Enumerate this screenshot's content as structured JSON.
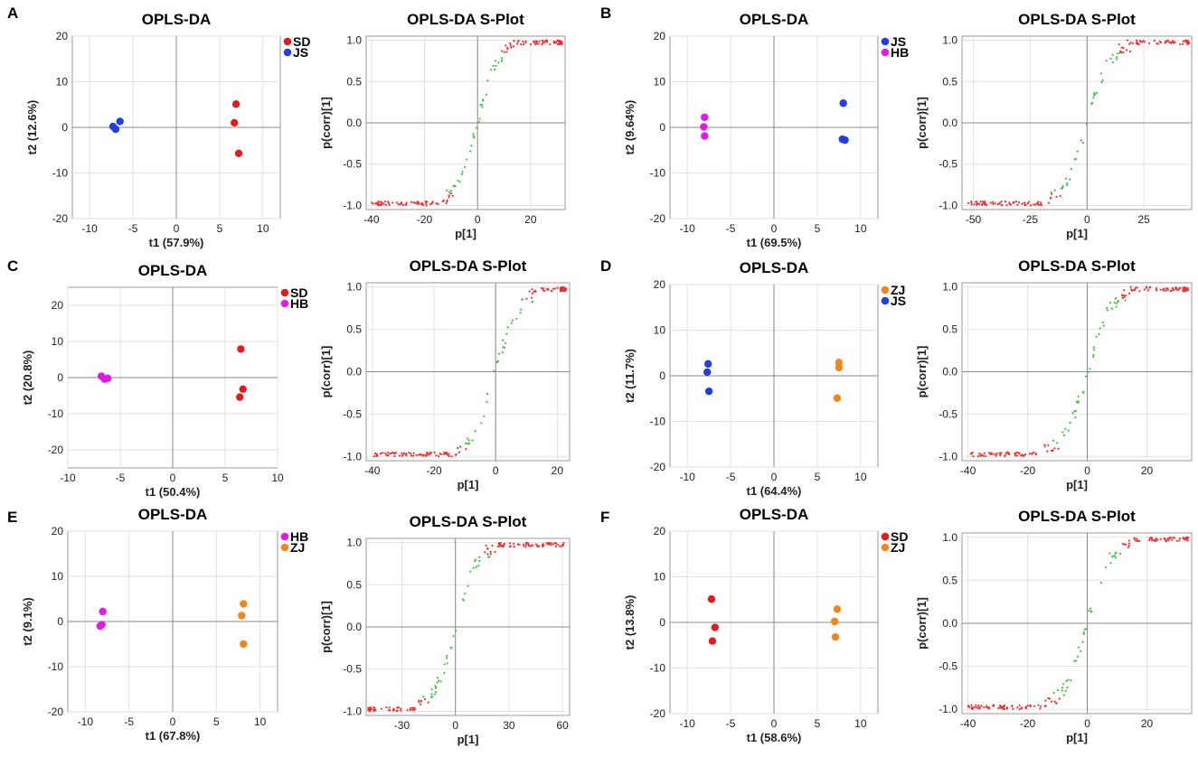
{
  "figure": {
    "title": "OPLS-DA and S-Plot panels A-F"
  },
  "colors": {
    "SD": "#e41a1c",
    "JS": "#1f3fe0",
    "HB": "#e21ae6",
    "ZJ": "#f0871b",
    "sig": "#f03030",
    "nonsig": "#3ac43a",
    "grid": "#e2e2e2",
    "axis": "#9a9a9a",
    "zero": "#8a8a8a"
  },
  "chart_data": [
    {
      "panel": "A",
      "type": "scatter",
      "kind": "opls",
      "title": "OPLS-DA",
      "xlabel": "t1 (57.9%)",
      "ylabel": "t2 (12.6%)",
      "xlim": [
        -12,
        12
      ],
      "ylim": [
        -20,
        20
      ],
      "xticks": [
        -10,
        -5,
        0,
        5,
        10
      ],
      "yticks": [
        -20,
        -10,
        0,
        10,
        20
      ],
      "legend": [
        {
          "label": "SD",
          "color": "#e41a1c"
        },
        {
          "label": "JS",
          "color": "#1f3fe0"
        }
      ],
      "series": [
        {
          "name": "SD",
          "color": "#e41a1c",
          "points": [
            [
              6.9,
              5.1
            ],
            [
              6.7,
              1.0
            ],
            [
              7.2,
              -5.7
            ]
          ]
        },
        {
          "name": "JS",
          "color": "#1f3fe0",
          "points": [
            [
              -6.5,
              1.3
            ],
            [
              -7.0,
              -0.4
            ],
            [
              -7.3,
              0.2
            ]
          ]
        }
      ]
    },
    {
      "panel": "A",
      "type": "scatter",
      "kind": "splot",
      "title": "OPLS-DA S-Plot",
      "xlabel": "p[1]",
      "ylabel": "p(corr)[1]",
      "xlim": [
        -42,
        33
      ],
      "ylim": [
        -1.05,
        1.05
      ],
      "xticks": [
        -40,
        -20,
        0,
        20
      ],
      "xtick_labels": [
        "-40",
        "-20",
        "0",
        "20"
      ],
      "yticks": [
        -1.0,
        -0.5,
        0.0,
        0.5,
        1.0
      ],
      "ytick_labels": [
        "-1.0",
        "-0.5",
        "0.0",
        "0.5",
        "1.0"
      ],
      "seed": 11
    },
    {
      "panel": "B",
      "type": "scatter",
      "kind": "opls",
      "title": "OPLS-DA",
      "xlabel": "t1 (69.5%)",
      "ylabel": "t2 (9.64%)",
      "xlim": [
        -12,
        12
      ],
      "ylim": [
        -20,
        20
      ],
      "xticks": [
        -10,
        -5,
        0,
        5,
        10
      ],
      "yticks": [
        -20,
        -10,
        0,
        10,
        20
      ],
      "legend": [
        {
          "label": "JS",
          "color": "#1f3fe0"
        },
        {
          "label": "HB",
          "color": "#e21ae6"
        }
      ],
      "series": [
        {
          "name": "JS",
          "color": "#1f3fe0",
          "points": [
            [
              8.0,
              5.3
            ],
            [
              7.9,
              -2.6
            ],
            [
              8.2,
              -2.8
            ]
          ]
        },
        {
          "name": "HB",
          "color": "#e21ae6",
          "points": [
            [
              -8.0,
              2.2
            ],
            [
              -8.1,
              0.1
            ],
            [
              -8.0,
              -1.9
            ]
          ]
        }
      ]
    },
    {
      "panel": "B",
      "type": "scatter",
      "kind": "splot",
      "title": "OPLS-DA S-Plot",
      "xlabel": "p[1]",
      "ylabel": "p(corr)[1]",
      "xlim": [
        -55,
        46
      ],
      "ylim": [
        -1.05,
        1.05
      ],
      "xticks": [
        -50,
        -25,
        0,
        25
      ],
      "xtick_labels": [
        "-50",
        "-25",
        "0",
        "25"
      ],
      "yticks": [
        -1.0,
        -0.5,
        0.0,
        0.5,
        1.0
      ],
      "ytick_labels": [
        "-1.0",
        "-0.5",
        "0.0",
        "0.5",
        "1.0"
      ],
      "seed": 23
    },
    {
      "panel": "C",
      "type": "scatter",
      "kind": "opls",
      "title": "OPLS-DA",
      "xlabel": "t1 (50.4%)",
      "ylabel": "t2 (20.8%)",
      "xlim": [
        -10,
        10
      ],
      "ylim": [
        -25,
        25
      ],
      "xticks": [
        -10,
        -5,
        0,
        5,
        10
      ],
      "yticks": [
        -20,
        -10,
        0,
        10,
        20
      ],
      "legend": [
        {
          "label": "SD",
          "color": "#e41a1c"
        },
        {
          "label": "HB",
          "color": "#e21ae6"
        }
      ],
      "series": [
        {
          "name": "SD",
          "color": "#e41a1c",
          "points": [
            [
              6.5,
              7.9
            ],
            [
              6.7,
              -3.2
            ],
            [
              6.4,
              -5.4
            ]
          ]
        },
        {
          "name": "HB",
          "color": "#e21ae6",
          "points": [
            [
              -6.8,
              0.4
            ],
            [
              -6.5,
              -0.4
            ],
            [
              -6.2,
              -0.2
            ]
          ]
        }
      ]
    },
    {
      "panel": "C",
      "type": "scatter",
      "kind": "splot",
      "title": "OPLS-DA S-Plot",
      "xlabel": "p[1]",
      "ylabel": "p(corr)[1]",
      "xlim": [
        -42,
        24
      ],
      "ylim": [
        -1.05,
        1.05
      ],
      "xticks": [
        -40,
        -20,
        0,
        20
      ],
      "xtick_labels": [
        "-40",
        "-20",
        "0",
        "20"
      ],
      "yticks": [
        -1.0,
        -0.5,
        0.0,
        0.5,
        1.0
      ],
      "ytick_labels": [
        "-1.0",
        "-0.5",
        "0.0",
        "0.5",
        "1.0"
      ],
      "seed": 37
    },
    {
      "panel": "D",
      "type": "scatter",
      "kind": "opls",
      "title": "OPLS-DA",
      "xlabel": "t1 (64.4%)",
      "ylabel": "t2 (11.7%)",
      "xlim": [
        -12,
        12
      ],
      "ylim": [
        -20,
        20
      ],
      "xticks": [
        -10,
        -5,
        0,
        5,
        10
      ],
      "yticks": [
        -20,
        -10,
        0,
        10,
        20
      ],
      "legend": [
        {
          "label": "ZJ",
          "color": "#f0871b"
        },
        {
          "label": "JS",
          "color": "#1f3fe0"
        }
      ],
      "series": [
        {
          "name": "ZJ",
          "color": "#f0871b",
          "points": [
            [
              7.5,
              2.9
            ],
            [
              7.5,
              1.8
            ],
            [
              7.3,
              -4.9
            ]
          ]
        },
        {
          "name": "JS",
          "color": "#1f3fe0",
          "points": [
            [
              -7.6,
              2.6
            ],
            [
              -7.7,
              0.8
            ],
            [
              -7.5,
              -3.4
            ]
          ]
        }
      ]
    },
    {
      "panel": "D",
      "type": "scatter",
      "kind": "splot",
      "title": "OPLS-DA S-Plot",
      "xlabel": "p[1]",
      "ylabel": "p(corr)[1]",
      "xlim": [
        -42,
        35
      ],
      "ylim": [
        -1.05,
        1.05
      ],
      "xticks": [
        -40,
        -20,
        0,
        20
      ],
      "xtick_labels": [
        "-40",
        "-20",
        "0",
        "20"
      ],
      "yticks": [
        -1.0,
        -0.5,
        0.0,
        0.5,
        1.0
      ],
      "ytick_labels": [
        "-1.0",
        "-0.5",
        "0.0",
        "0.5",
        "1.0"
      ],
      "seed": 41
    },
    {
      "panel": "E",
      "type": "scatter",
      "kind": "opls",
      "title": "OPLS-DA",
      "xlabel": "t1 (67.8%)",
      "ylabel": "t2 (9.1%)",
      "xlim": [
        -12,
        12
      ],
      "ylim": [
        -20,
        20
      ],
      "xticks": [
        -10,
        -5,
        0,
        5,
        10
      ],
      "yticks": [
        -20,
        -10,
        0,
        10,
        20
      ],
      "legend": [
        {
          "label": "HB",
          "color": "#e21ae6"
        },
        {
          "label": "ZJ",
          "color": "#f0871b"
        }
      ],
      "series": [
        {
          "name": "HB",
          "color": "#e21ae6",
          "points": [
            [
              -8.0,
              2.2
            ],
            [
              -8.1,
              -0.7
            ],
            [
              -8.3,
              -1.0
            ]
          ]
        },
        {
          "name": "ZJ",
          "color": "#f0871b",
          "points": [
            [
              8.1,
              3.9
            ],
            [
              7.9,
              1.3
            ],
            [
              8.1,
              -5.0
            ]
          ]
        }
      ]
    },
    {
      "panel": "E",
      "type": "scatter",
      "kind": "splot",
      "title": "OPLS-DA S-Plot",
      "xlabel": "p[1]",
      "ylabel": "p(corr)[1]",
      "xlim": [
        -50,
        64
      ],
      "ylim": [
        -1.05,
        1.05
      ],
      "xticks": [
        -30,
        0,
        30,
        60
      ],
      "xtick_labels": [
        "-30",
        "0",
        "30",
        "60"
      ],
      "yticks": [
        -1.0,
        -0.5,
        0.0,
        0.5,
        1.0
      ],
      "ytick_labels": [
        "-1.0",
        "-0.5",
        "0.0",
        "0.5",
        "1.0"
      ],
      "seed": 53
    },
    {
      "panel": "F",
      "type": "scatter",
      "kind": "opls",
      "title": "OPLS-DA",
      "xlabel": "t1 (58.6%)",
      "ylabel": "t2 (13.8%)",
      "xlim": [
        -12,
        12
      ],
      "ylim": [
        -20,
        20
      ],
      "xticks": [
        -10,
        -5,
        0,
        5,
        10
      ],
      "yticks": [
        -20,
        -10,
        0,
        10,
        20
      ],
      "legend": [
        {
          "label": "SD",
          "color": "#e41a1c"
        },
        {
          "label": "ZJ",
          "color": "#f0871b"
        }
      ],
      "series": [
        {
          "name": "SD",
          "color": "#e41a1c",
          "points": [
            [
              -7.2,
              5.1
            ],
            [
              -6.8,
              -1.1
            ],
            [
              -7.1,
              -4.1
            ]
          ]
        },
        {
          "name": "ZJ",
          "color": "#f0871b",
          "points": [
            [
              7.3,
              2.9
            ],
            [
              7.0,
              0.2
            ],
            [
              7.1,
              -3.2
            ]
          ]
        }
      ]
    },
    {
      "panel": "F",
      "type": "scatter",
      "kind": "splot",
      "title": "OPLS-DA S-Plot",
      "xlabel": "p[1]",
      "ylabel": "p(corr)[1]",
      "xlim": [
        -42,
        35
      ],
      "ylim": [
        -1.05,
        1.05
      ],
      "xticks": [
        -40,
        -20,
        0,
        20
      ],
      "xtick_labels": [
        "-40",
        "-20",
        "0",
        "20"
      ],
      "yticks": [
        -1.0,
        -0.5,
        0.0,
        0.5,
        1.0
      ],
      "ytick_labels": [
        "-1.0",
        "-0.5",
        "0.0",
        "0.5",
        "1.0"
      ],
      "seed": 67
    }
  ]
}
